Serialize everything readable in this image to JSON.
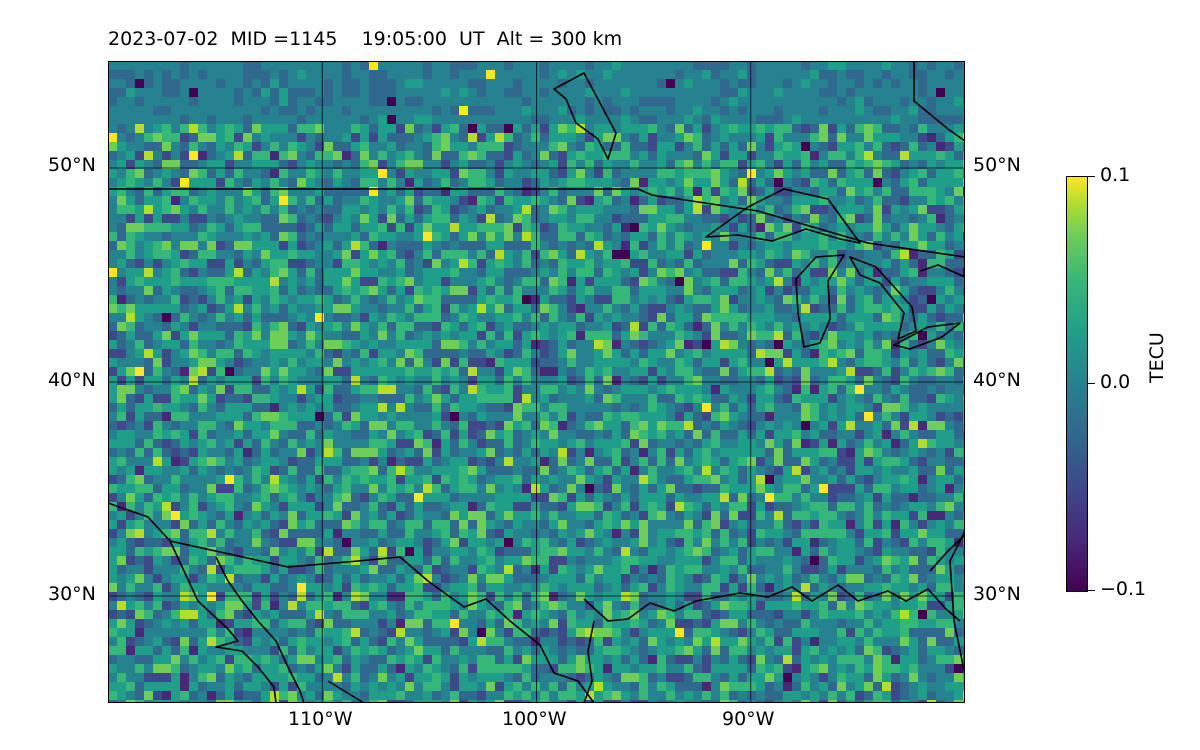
{
  "title": "2023-07-02  MID =1145    19:05:00  UT  Alt = 300 km",
  "map": {
    "type": "heatmap",
    "extent": {
      "lon": [
        -120,
        -80
      ],
      "lat": [
        25,
        55
      ]
    },
    "lat_ticks": [
      {
        "value": 50,
        "label": "50°N"
      },
      {
        "value": 40,
        "label": "40°N"
      },
      {
        "value": 30,
        "label": "30°N"
      }
    ],
    "lon_ticks": [
      {
        "value": -110,
        "label": "110°W"
      },
      {
        "value": -100,
        "label": "100°W"
      },
      {
        "value": -90,
        "label": "90°W"
      }
    ],
    "gridlines": true,
    "coastlines": true,
    "background_field_color": "#2a7f8e"
  },
  "colorbar": {
    "label": "TECU",
    "colormap": "viridis",
    "range": [
      -0.1,
      0.1
    ],
    "ticks": [
      {
        "value": 0.1,
        "label": "0.1"
      },
      {
        "value": 0.0,
        "label": "0.0"
      },
      {
        "value": -0.1,
        "label": "−0.1"
      }
    ]
  }
}
